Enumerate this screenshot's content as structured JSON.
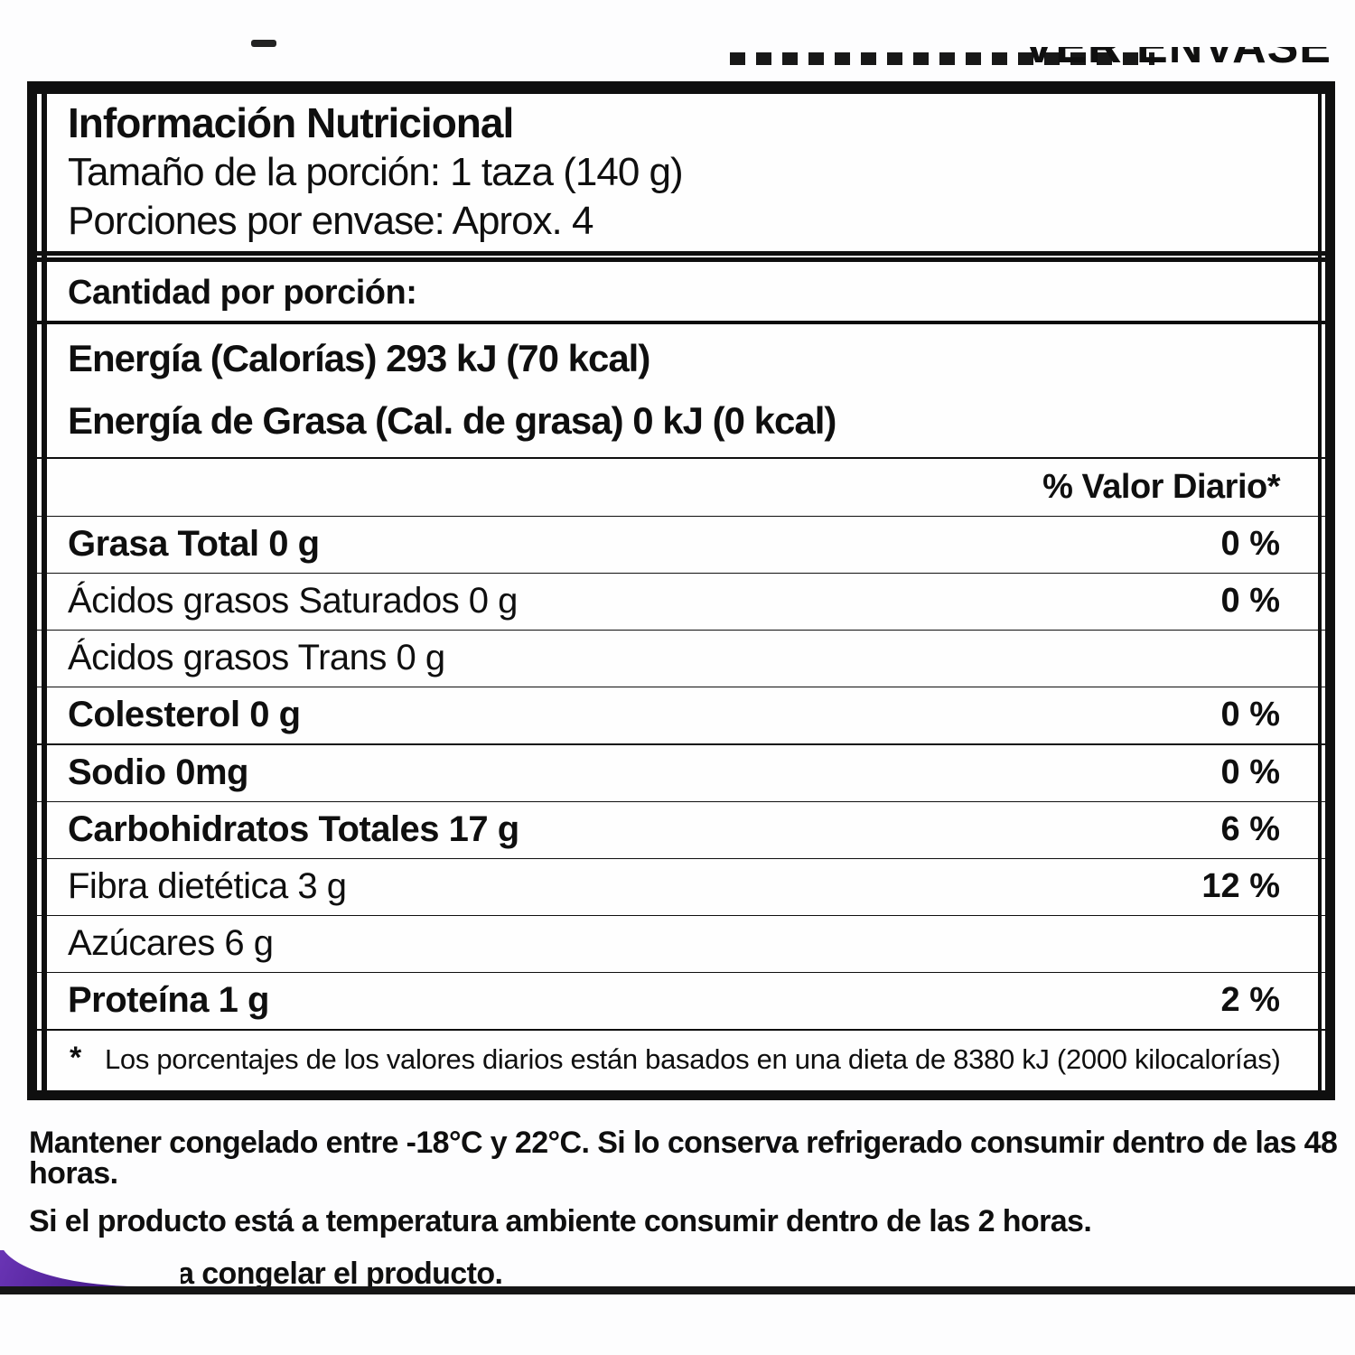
{
  "top_cutoff_text": "VER ENVASE",
  "label": {
    "title": "Información Nutricional",
    "serving_size": "Tamaño de la porción: 1 taza (140 g)",
    "servings_per_container": "Porciones por envase: Aprox. 4",
    "amount_per_serving": "Cantidad por porción:",
    "energy_calories": "Energía (Calorías) 293 kJ (70 kcal)",
    "energy_fat": "Energía de Grasa (Cal. de grasa) 0 kJ (0 kcal)",
    "daily_value_header": "% Valor Diario*",
    "nutrients": [
      {
        "name": "Grasa Total 0 g",
        "dv": "0 %"
      },
      {
        "name": "Ácidos grasos Saturados 0 g",
        "dv": "0 %"
      },
      {
        "name": "Ácidos grasos Trans 0 g",
        "dv": ""
      },
      {
        "name": "Colesterol 0 g",
        "dv": "0 %"
      },
      {
        "name": "Sodio 0mg",
        "dv": "0 %"
      },
      {
        "name": "Carbohidratos Totales 17 g",
        "dv": "6 %"
      },
      {
        "name": "Fibra dietética 3 g",
        "dv": "12 %"
      },
      {
        "name": "Azúcares 6 g",
        "dv": ""
      },
      {
        "name": "Proteína 1 g",
        "dv": "2 %"
      }
    ],
    "footnote_marker": "*",
    "footnote": "Los porcentajes de los valores diarios están basados en una dieta de 8380 kJ (2000 kilocalorías)"
  },
  "storage_instructions": [
    "Mantener congelado entre -18°C y 22°C. Si lo conserva refrigerado consumir dentro de las 48 horas.",
    "Si el producto está a temperatura ambiente consumir dentro de las 2 horas.",
    "No vuelva a congelar el producto."
  ],
  "colors": {
    "ink": "#0f0f0f",
    "package_purple": "#4e1f96"
  }
}
